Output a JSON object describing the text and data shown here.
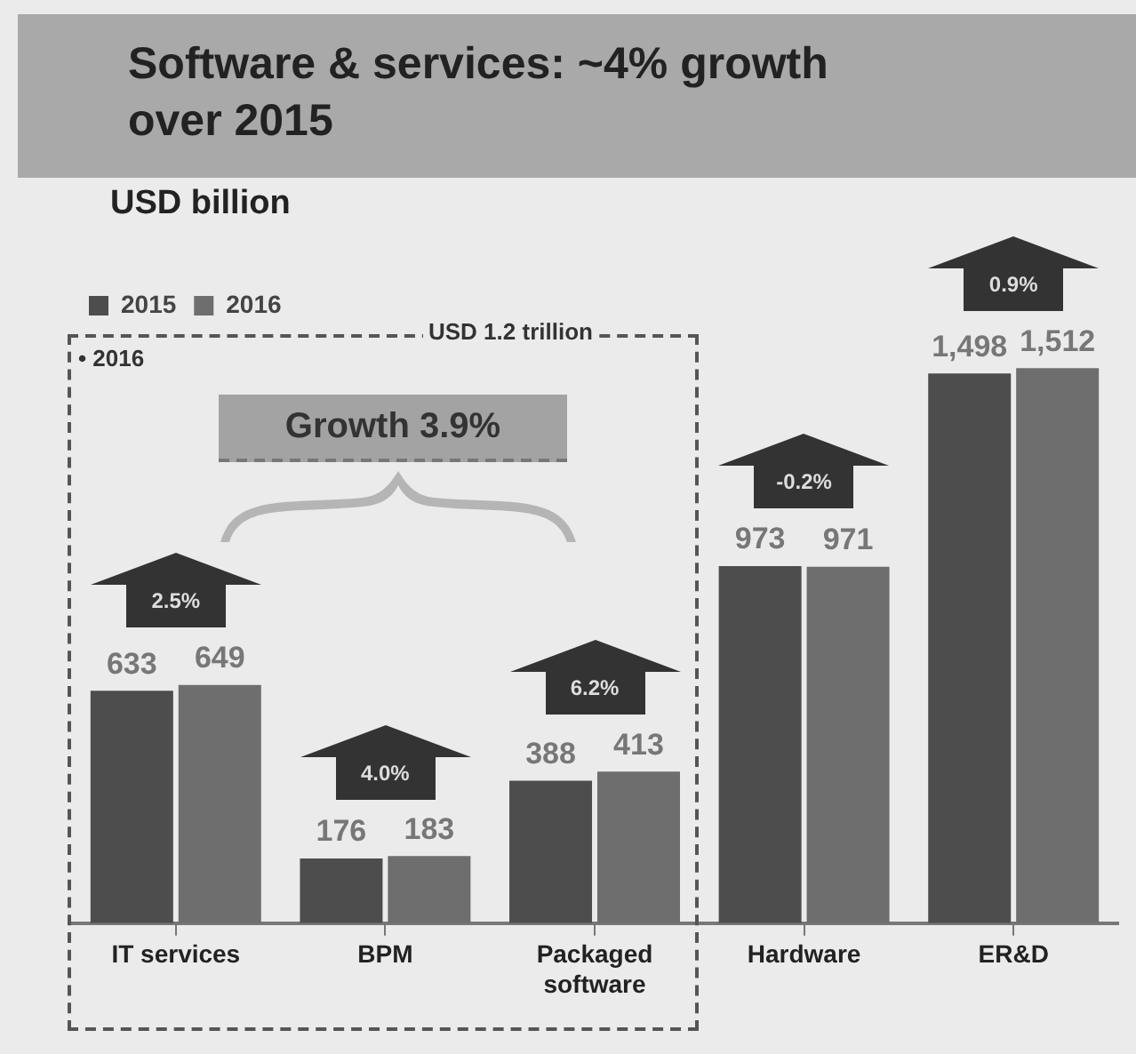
{
  "chart_data": {
    "type": "bar",
    "title": "Software & services: ~4% growth over 2015",
    "ylabel": "USD billion",
    "categories": [
      "IT services",
      "BPM",
      "Packaged software",
      "Hardware",
      "ER&D"
    ],
    "series": [
      {
        "name": "2015",
        "color": "#4d4d4d",
        "values": [
          633,
          176,
          388,
          973,
          1498
        ],
        "value_labels": [
          "633",
          "176",
          "388",
          "973",
          "1,498"
        ]
      },
      {
        "name": "2016",
        "color": "#6e6e6e",
        "values": [
          649,
          183,
          413,
          971,
          1512
        ],
        "value_labels": [
          "649",
          "183",
          "413",
          "971",
          "1,512"
        ]
      }
    ],
    "legend": "top left",
    "grid": false,
    "annotations": [
      "USD 1.2 trillion",
      "• 2016",
      "Growth 3.9%",
      "2.5%",
      "4.0%",
      "6.2%",
      "-0.2%",
      "0.9%"
    ]
  }
}
